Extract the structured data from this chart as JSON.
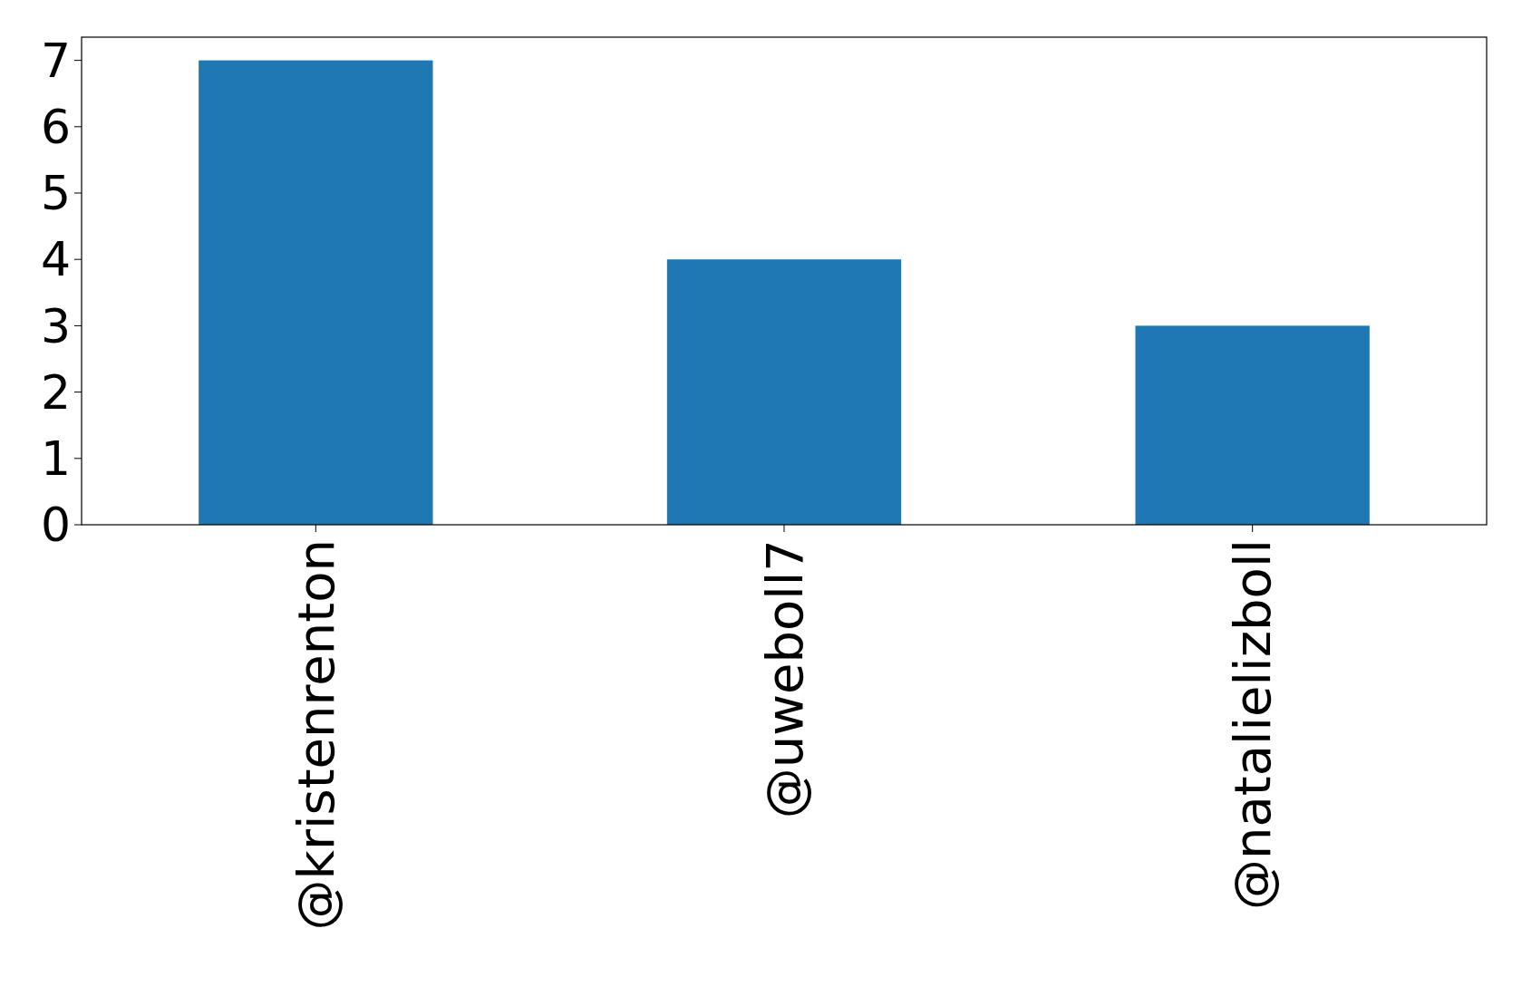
{
  "chart_data": {
    "type": "bar",
    "categories": [
      "@kristenrenton",
      "@uweboll7",
      "@natalielizboll"
    ],
    "values": [
      7,
      4,
      3
    ],
    "color": "#1f77b4",
    "ylim": [
      0,
      7.35
    ],
    "yticks": [
      0,
      1,
      2,
      3,
      4,
      5,
      6,
      7
    ],
    "grid": false
  }
}
